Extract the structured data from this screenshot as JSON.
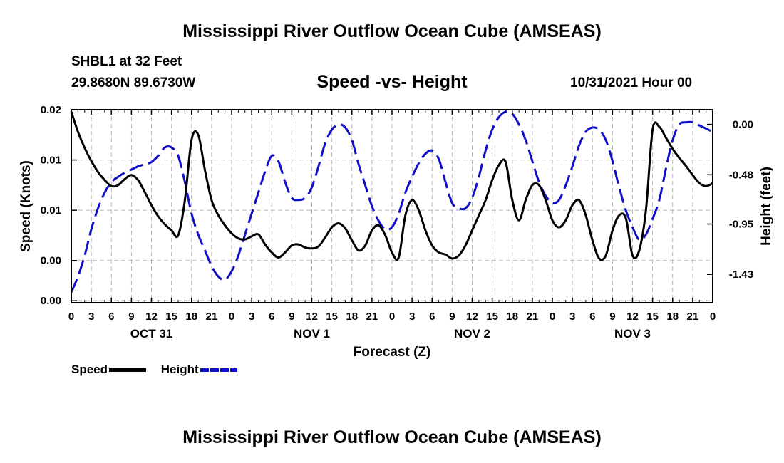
{
  "page": {
    "title": "Mississippi River Outflow Ocean Cube (AMSEAS)",
    "footer_title": "Mississippi River Outflow Ocean Cube (AMSEAS)",
    "station": "SHBL1 at 32 Feet",
    "coordinates": "29.8680N  89.6730W",
    "subtitle": "Speed -vs- Height",
    "datetime": "10/31/2021 Hour 00"
  },
  "legend": {
    "speed_label": "Speed",
    "height_label": "Height",
    "speed_color": "#000000",
    "height_color": "#1010c8"
  },
  "chart_data": {
    "type": "line",
    "xlabel": "Forecast (Z)",
    "ylabel_left": "Speed (Knots)",
    "ylabel_right": "Height (feet)",
    "x_range": [
      0,
      96
    ],
    "y_left_range": [
      -0.0042,
      0.015
    ],
    "y_right_range": [
      -1.7,
      0.14
    ],
    "y_left_ticks": [
      {
        "value": -0.004,
        "label": "0.00"
      },
      {
        "value": 0.0,
        "label": "0.00"
      },
      {
        "value": 0.005,
        "label": "0.01"
      },
      {
        "value": 0.01,
        "label": "0.01"
      },
      {
        "value": 0.015,
        "label": "0.02"
      }
    ],
    "y_right_ticks": [
      {
        "value": 0.0,
        "label": "0.00"
      },
      {
        "value": -0.48,
        "label": "-0.48"
      },
      {
        "value": -0.95,
        "label": "-0.95"
      },
      {
        "value": -1.43,
        "label": "-1.43"
      }
    ],
    "x_ticks": [
      {
        "value": 0,
        "label": "0"
      },
      {
        "value": 3,
        "label": "3"
      },
      {
        "value": 6,
        "label": "6"
      },
      {
        "value": 9,
        "label": "9"
      },
      {
        "value": 12,
        "label": "12"
      },
      {
        "value": 15,
        "label": "15"
      },
      {
        "value": 18,
        "label": "18"
      },
      {
        "value": 21,
        "label": "21"
      },
      {
        "value": 24,
        "label": "0"
      },
      {
        "value": 27,
        "label": "3"
      },
      {
        "value": 30,
        "label": "6"
      },
      {
        "value": 33,
        "label": "9"
      },
      {
        "value": 36,
        "label": "12"
      },
      {
        "value": 39,
        "label": "15"
      },
      {
        "value": 42,
        "label": "18"
      },
      {
        "value": 45,
        "label": "21"
      },
      {
        "value": 48,
        "label": "0"
      },
      {
        "value": 51,
        "label": "3"
      },
      {
        "value": 54,
        "label": "6"
      },
      {
        "value": 57,
        "label": "9"
      },
      {
        "value": 60,
        "label": "12"
      },
      {
        "value": 63,
        "label": "15"
      },
      {
        "value": 66,
        "label": "18"
      },
      {
        "value": 69,
        "label": "21"
      },
      {
        "value": 72,
        "label": "0"
      },
      {
        "value": 75,
        "label": "3"
      },
      {
        "value": 78,
        "label": "6"
      },
      {
        "value": 81,
        "label": "9"
      },
      {
        "value": 84,
        "label": "12"
      },
      {
        "value": 87,
        "label": "15"
      },
      {
        "value": 90,
        "label": "18"
      },
      {
        "value": 93,
        "label": "21"
      },
      {
        "value": 96,
        "label": "0"
      }
    ],
    "date_labels": [
      {
        "value": 12,
        "label": "OCT 31"
      },
      {
        "value": 36,
        "label": "NOV 1"
      },
      {
        "value": 60,
        "label": "NOV 2"
      },
      {
        "value": 84,
        "label": "NOV 3"
      }
    ],
    "grid": true,
    "series": [
      {
        "name": "Speed",
        "axis": "left",
        "color": "#000000",
        "style": "solid",
        "x": [
          0,
          1,
          2,
          3,
          4,
          5,
          6,
          7,
          8,
          9,
          10,
          11,
          12,
          13,
          14,
          15,
          16,
          17,
          18,
          19,
          20,
          21,
          22,
          23,
          24,
          25,
          26,
          27,
          28,
          29,
          30,
          31,
          32,
          33,
          34,
          35,
          36,
          37,
          38,
          39,
          40,
          41,
          42,
          43,
          44,
          45,
          46,
          47,
          48,
          49,
          50,
          51,
          52,
          53,
          54,
          55,
          56,
          57,
          58,
          59,
          60,
          61,
          62,
          63,
          64,
          65,
          66,
          67,
          68,
          69,
          70,
          71,
          72,
          73,
          74,
          75,
          76,
          77,
          78,
          79,
          80,
          81,
          82,
          83,
          84,
          85,
          86,
          87,
          88,
          89,
          90,
          91,
          92,
          93,
          94,
          95,
          96
        ],
        "values": [
          0.0148,
          0.0128,
          0.0112,
          0.0099,
          0.0088,
          0.008,
          0.0074,
          0.0075,
          0.0081,
          0.0085,
          0.008,
          0.0068,
          0.0055,
          0.0044,
          0.0036,
          0.003,
          0.0025,
          0.006,
          0.012,
          0.0125,
          0.009,
          0.006,
          0.0045,
          0.0035,
          0.0027,
          0.0022,
          0.0021,
          0.0024,
          0.0026,
          0.0016,
          0.0008,
          0.0003,
          0.0008,
          0.0015,
          0.0016,
          0.0013,
          0.0012,
          0.0014,
          0.0023,
          0.0033,
          0.0037,
          0.0032,
          0.002,
          0.001,
          0.0015,
          0.003,
          0.0035,
          0.0025,
          0.0008,
          0.0003,
          0.0045,
          0.006,
          0.005,
          0.003,
          0.0015,
          0.0008,
          0.0006,
          0.0002,
          0.0005,
          0.0015,
          0.003,
          0.0045,
          0.006,
          0.008,
          0.0095,
          0.0098,
          0.006,
          0.004,
          0.006,
          0.0075,
          0.0075,
          0.006,
          0.004,
          0.0033,
          0.004,
          0.0055,
          0.006,
          0.0045,
          0.002,
          0.0002,
          0.0005,
          0.003,
          0.0045,
          0.0042,
          0.0005,
          0.001,
          0.005,
          0.013,
          0.0133,
          0.0122,
          0.0111,
          0.0102,
          0.0094,
          0.0085,
          0.0077,
          0.0074,
          0.0077
        ]
      },
      {
        "name": "Height",
        "axis": "right",
        "color": "#1010c8",
        "style": "dashed",
        "x": [
          0,
          1,
          2,
          3,
          4,
          5,
          6,
          7,
          8,
          9,
          10,
          11,
          12,
          13,
          14,
          15,
          16,
          17,
          18,
          19,
          20,
          21,
          22,
          23,
          24,
          25,
          26,
          27,
          28,
          29,
          30,
          31,
          32,
          33,
          34,
          35,
          36,
          37,
          38,
          39,
          40,
          41,
          42,
          43,
          44,
          45,
          46,
          47,
          48,
          49,
          50,
          51,
          52,
          53,
          54,
          55,
          56,
          57,
          58,
          59,
          60,
          61,
          62,
          63,
          64,
          65,
          66,
          67,
          68,
          69,
          70,
          71,
          72,
          73,
          74,
          75,
          76,
          77,
          78,
          79,
          80,
          81,
          82,
          83,
          84,
          85,
          86,
          87,
          88,
          89,
          90,
          91,
          92,
          93,
          94,
          95,
          96
        ],
        "values": [
          -1.6,
          -1.45,
          -1.25,
          -1.0,
          -0.8,
          -0.65,
          -0.55,
          -0.5,
          -0.46,
          -0.43,
          -0.4,
          -0.38,
          -0.36,
          -0.3,
          -0.22,
          -0.22,
          -0.3,
          -0.55,
          -0.85,
          -1.05,
          -1.2,
          -1.35,
          -1.45,
          -1.48,
          -1.4,
          -1.25,
          -1.05,
          -0.85,
          -0.65,
          -0.45,
          -0.3,
          -0.35,
          -0.55,
          -0.7,
          -0.72,
          -0.7,
          -0.6,
          -0.4,
          -0.18,
          -0.05,
          0.0,
          -0.03,
          -0.15,
          -0.38,
          -0.58,
          -0.78,
          -0.92,
          -1.0,
          -0.98,
          -0.85,
          -0.65,
          -0.5,
          -0.37,
          -0.28,
          -0.25,
          -0.33,
          -0.55,
          -0.75,
          -0.8,
          -0.8,
          -0.7,
          -0.5,
          -0.25,
          -0.05,
          0.07,
          0.12,
          0.1,
          0.0,
          -0.15,
          -0.35,
          -0.55,
          -0.68,
          -0.75,
          -0.72,
          -0.58,
          -0.4,
          -0.2,
          -0.07,
          -0.03,
          -0.05,
          -0.15,
          -0.35,
          -0.6,
          -0.82,
          -0.98,
          -1.1,
          -1.05,
          -0.9,
          -0.72,
          -0.42,
          -0.15,
          0.0,
          0.02,
          0.02,
          -0.01,
          -0.04,
          -0.07
        ]
      }
    ]
  }
}
